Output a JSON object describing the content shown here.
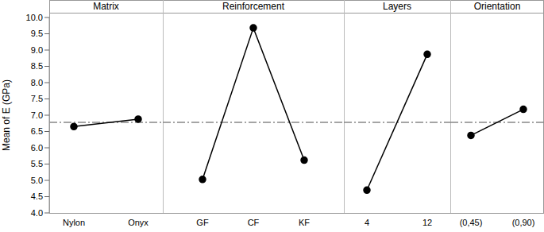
{
  "chart_data": {
    "type": "line",
    "y_label": "Mean of E (GPa)",
    "ylim": [
      4.0,
      10.0
    ],
    "yticks": [
      {
        "value": 4.0,
        "label": "4.0"
      },
      {
        "value": 4.5,
        "label": "4.5"
      },
      {
        "value": 5.0,
        "label": "5.0"
      },
      {
        "value": 5.5,
        "label": "5.5"
      },
      {
        "value": 6.0,
        "label": "6.0"
      },
      {
        "value": 6.5,
        "label": "6.5"
      },
      {
        "value": 7.0,
        "label": "7.0"
      },
      {
        "value": 7.5,
        "label": "7.5"
      },
      {
        "value": 8.0,
        "label": "8.0"
      },
      {
        "value": 8.5,
        "label": "8.5"
      },
      {
        "value": 9.0,
        "label": "9.0"
      },
      {
        "value": 9.5,
        "label": "9.5"
      },
      {
        "value": 10.0,
        "label": "10.0"
      }
    ],
    "grid": false,
    "color": "#000000",
    "marker": "circle",
    "line_style": "solid",
    "reference_line": 6.78,
    "panels": [
      {
        "title": "Matrix",
        "categories": [
          "Nylon",
          "Onyx"
        ],
        "values": [
          6.65,
          6.88
        ]
      },
      {
        "title": "Reinforcement",
        "categories": [
          "GF",
          "CF",
          "KF"
        ],
        "values": [
          5.03,
          9.68,
          5.62
        ]
      },
      {
        "title": "Layers",
        "categories": [
          "4",
          "12"
        ],
        "values": [
          4.7,
          8.87
        ]
      },
      {
        "title": "Orientation",
        "categories": [
          "(0,45)",
          "(0,90)"
        ],
        "values": [
          6.38,
          7.18
        ]
      }
    ]
  }
}
